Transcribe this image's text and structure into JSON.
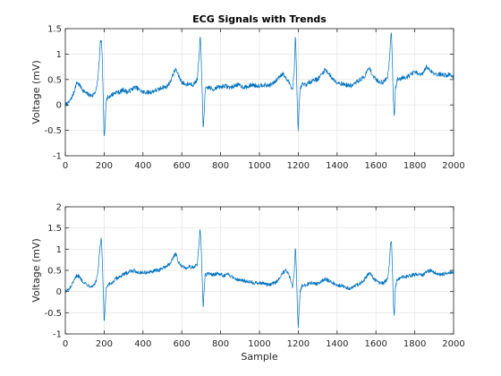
{
  "figure": {
    "background": "#ffffff"
  },
  "chart_data": [
    {
      "type": "line",
      "title": "ECG Signals with Trends",
      "xlabel": "",
      "ylabel": "Voltage (mV)",
      "xlim": [
        0,
        2000
      ],
      "ylim": [
        -1,
        1.5
      ],
      "xticks": [
        0,
        200,
        400,
        600,
        800,
        1000,
        1200,
        1400,
        1600,
        1800,
        2000
      ],
      "xtick_labels": [
        "0",
        "200",
        "400",
        "600",
        "800",
        "1000",
        "1200",
        "1400",
        "1600",
        "1800",
        "2000"
      ],
      "yticks": [
        -1,
        -0.5,
        0,
        0.5,
        1,
        1.5
      ],
      "ytick_labels": [
        "-1",
        "-0.5",
        "0",
        "0.5",
        "1",
        "1.5"
      ],
      "grid": true,
      "box": true,
      "series": [
        {
          "color": "#0072BD",
          "x": [
            0,
            20,
            40,
            60,
            80,
            100,
            120,
            140,
            160,
            170,
            180,
            185,
            190,
            195,
            200,
            205,
            210,
            220,
            240,
            260,
            280,
            300,
            320,
            340,
            360,
            380,
            400,
            420,
            440,
            460,
            480,
            500,
            520,
            540,
            560,
            570,
            580,
            600,
            620,
            640,
            660,
            680,
            690,
            695,
            700,
            705,
            710,
            715,
            720,
            740,
            760,
            780,
            800,
            820,
            840,
            860,
            880,
            900,
            920,
            940,
            960,
            980,
            1000,
            1020,
            1040,
            1060,
            1080,
            1100,
            1120,
            1140,
            1160,
            1170,
            1180,
            1185,
            1190,
            1195,
            1200,
            1205,
            1210,
            1220,
            1240,
            1260,
            1280,
            1300,
            1320,
            1340,
            1360,
            1380,
            1400,
            1420,
            1440,
            1460,
            1480,
            1500,
            1520,
            1540,
            1560,
            1570,
            1580,
            1600,
            1620,
            1640,
            1660,
            1670,
            1675,
            1680,
            1685,
            1690,
            1695,
            1700,
            1710,
            1720,
            1740,
            1760,
            1780,
            1800,
            1820,
            1840,
            1860,
            1880,
            1900,
            1920,
            1940,
            1960,
            1980,
            2000
          ],
          "y": [
            0.0,
            0.05,
            0.2,
            0.45,
            0.35,
            0.25,
            0.2,
            0.18,
            0.3,
            0.6,
            1.2,
            1.3,
            0.9,
            0.2,
            -0.7,
            -0.4,
            0.1,
            0.15,
            0.2,
            0.25,
            0.25,
            0.3,
            0.25,
            0.3,
            0.35,
            0.3,
            0.25,
            0.25,
            0.25,
            0.28,
            0.3,
            0.35,
            0.35,
            0.45,
            0.65,
            0.7,
            0.6,
            0.45,
            0.4,
            0.42,
            0.4,
            0.5,
            1.0,
            1.35,
            0.9,
            0.3,
            -0.5,
            -0.2,
            0.3,
            0.35,
            0.3,
            0.35,
            0.35,
            0.38,
            0.35,
            0.35,
            0.4,
            0.38,
            0.35,
            0.35,
            0.4,
            0.38,
            0.38,
            0.4,
            0.38,
            0.4,
            0.45,
            0.55,
            0.62,
            0.5,
            0.4,
            0.3,
            0.7,
            1.4,
            0.8,
            0.0,
            -0.5,
            0.0,
            0.3,
            0.4,
            0.4,
            0.45,
            0.5,
            0.5,
            0.6,
            0.7,
            0.6,
            0.5,
            0.45,
            0.42,
            0.4,
            0.38,
            0.38,
            0.45,
            0.5,
            0.55,
            0.7,
            0.72,
            0.6,
            0.5,
            0.45,
            0.45,
            0.55,
            0.9,
            1.3,
            1.45,
            0.8,
            0.1,
            -0.3,
            0.3,
            0.5,
            0.5,
            0.55,
            0.55,
            0.6,
            0.65,
            0.6,
            0.6,
            0.75,
            0.68,
            0.62,
            0.6,
            0.6,
            0.58,
            0.6,
            0.55
          ]
        }
      ]
    },
    {
      "type": "line",
      "title": "",
      "xlabel": "Sample",
      "ylabel": "Voltage (mV)",
      "xlim": [
        0,
        2000
      ],
      "ylim": [
        -1,
        2
      ],
      "xticks": [
        0,
        200,
        400,
        600,
        800,
        1000,
        1200,
        1400,
        1600,
        1800,
        2000
      ],
      "xtick_labels": [
        "0",
        "200",
        "400",
        "600",
        "800",
        "1000",
        "1200",
        "1400",
        "1600",
        "1800",
        "2000"
      ],
      "yticks": [
        -1,
        -0.5,
        0,
        0.5,
        1,
        1.5,
        2
      ],
      "ytick_labels": [
        "-1",
        "-0.5",
        "0",
        "0.5",
        "1",
        "1.5",
        "2"
      ],
      "grid": true,
      "box": true,
      "series": [
        {
          "color": "#0072BD",
          "x": [
            0,
            20,
            40,
            60,
            80,
            100,
            120,
            140,
            160,
            170,
            180,
            185,
            190,
            195,
            200,
            205,
            210,
            220,
            240,
            260,
            280,
            300,
            320,
            340,
            360,
            380,
            400,
            420,
            440,
            460,
            480,
            500,
            520,
            540,
            560,
            570,
            580,
            600,
            620,
            640,
            660,
            680,
            690,
            695,
            700,
            705,
            710,
            715,
            720,
            740,
            760,
            780,
            800,
            820,
            840,
            860,
            880,
            900,
            920,
            940,
            960,
            980,
            1000,
            1020,
            1040,
            1060,
            1080,
            1100,
            1120,
            1140,
            1160,
            1170,
            1180,
            1185,
            1190,
            1195,
            1200,
            1205,
            1210,
            1220,
            1240,
            1260,
            1280,
            1300,
            1320,
            1340,
            1360,
            1380,
            1400,
            1420,
            1440,
            1460,
            1480,
            1500,
            1520,
            1540,
            1560,
            1570,
            1580,
            1600,
            1620,
            1640,
            1660,
            1670,
            1675,
            1680,
            1685,
            1690,
            1695,
            1700,
            1710,
            1720,
            1740,
            1760,
            1780,
            1800,
            1820,
            1840,
            1860,
            1880,
            1900,
            1920,
            1940,
            1960,
            1980,
            2000
          ],
          "y": [
            0.0,
            0.05,
            0.2,
            0.4,
            0.3,
            0.2,
            0.15,
            0.12,
            0.25,
            0.55,
            1.1,
            1.25,
            0.8,
            0.1,
            -0.75,
            -0.4,
            0.05,
            0.15,
            0.2,
            0.3,
            0.35,
            0.4,
            0.45,
            0.5,
            0.48,
            0.45,
            0.45,
            0.45,
            0.45,
            0.5,
            0.5,
            0.55,
            0.6,
            0.65,
            0.85,
            0.9,
            0.7,
            0.6,
            0.55,
            0.6,
            0.55,
            0.65,
            1.2,
            1.5,
            1.0,
            0.3,
            -0.4,
            0.0,
            0.4,
            0.42,
            0.4,
            0.42,
            0.4,
            0.38,
            0.4,
            0.35,
            0.3,
            0.28,
            0.25,
            0.25,
            0.22,
            0.2,
            0.2,
            0.2,
            0.15,
            0.18,
            0.2,
            0.3,
            0.45,
            0.5,
            0.3,
            0.1,
            0.5,
            1.1,
            0.6,
            -0.3,
            -0.85,
            -0.4,
            0.0,
            0.15,
            0.15,
            0.2,
            0.2,
            0.18,
            0.25,
            0.3,
            0.25,
            0.2,
            0.15,
            0.15,
            0.1,
            0.08,
            0.1,
            0.15,
            0.2,
            0.28,
            0.4,
            0.45,
            0.35,
            0.25,
            0.2,
            0.2,
            0.3,
            0.7,
            1.1,
            1.25,
            0.5,
            -0.3,
            -0.6,
            0.1,
            0.3,
            0.3,
            0.35,
            0.35,
            0.38,
            0.4,
            0.4,
            0.38,
            0.45,
            0.5,
            0.45,
            0.42,
            0.4,
            0.42,
            0.45,
            0.45
          ]
        }
      ]
    }
  ]
}
